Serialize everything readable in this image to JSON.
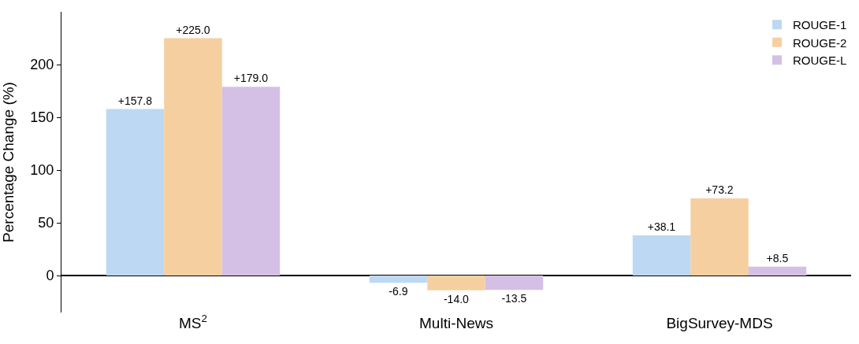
{
  "chart_data": {
    "type": "bar",
    "ylabel": "Percentage Change (%)",
    "categories": [
      "MS$^{2}$",
      "Multi-News",
      "BigSurvey-MDS"
    ],
    "series": [
      {
        "name": "ROUGE-1",
        "color": "#bdd8f3",
        "values": [
          157.8,
          -6.9,
          38.1
        ],
        "value_labels": [
          "+157.8",
          "-6.9",
          "+38.1"
        ]
      },
      {
        "name": "ROUGE-2",
        "color": "#f6cfa0",
        "values": [
          225.0,
          -14.0,
          73.2
        ],
        "value_labels": [
          "+225.0",
          "-14.0",
          "+73.2"
        ]
      },
      {
        "name": "ROUGE-L",
        "color": "#d4c0e4",
        "values": [
          179.0,
          -13.5,
          8.5
        ],
        "value_labels": [
          "+179.0",
          "-13.5",
          "+8.5"
        ]
      }
    ],
    "ylim": [
      -35,
      250
    ],
    "yticks": [
      0,
      50,
      100,
      150,
      200
    ],
    "legend": "top right"
  }
}
